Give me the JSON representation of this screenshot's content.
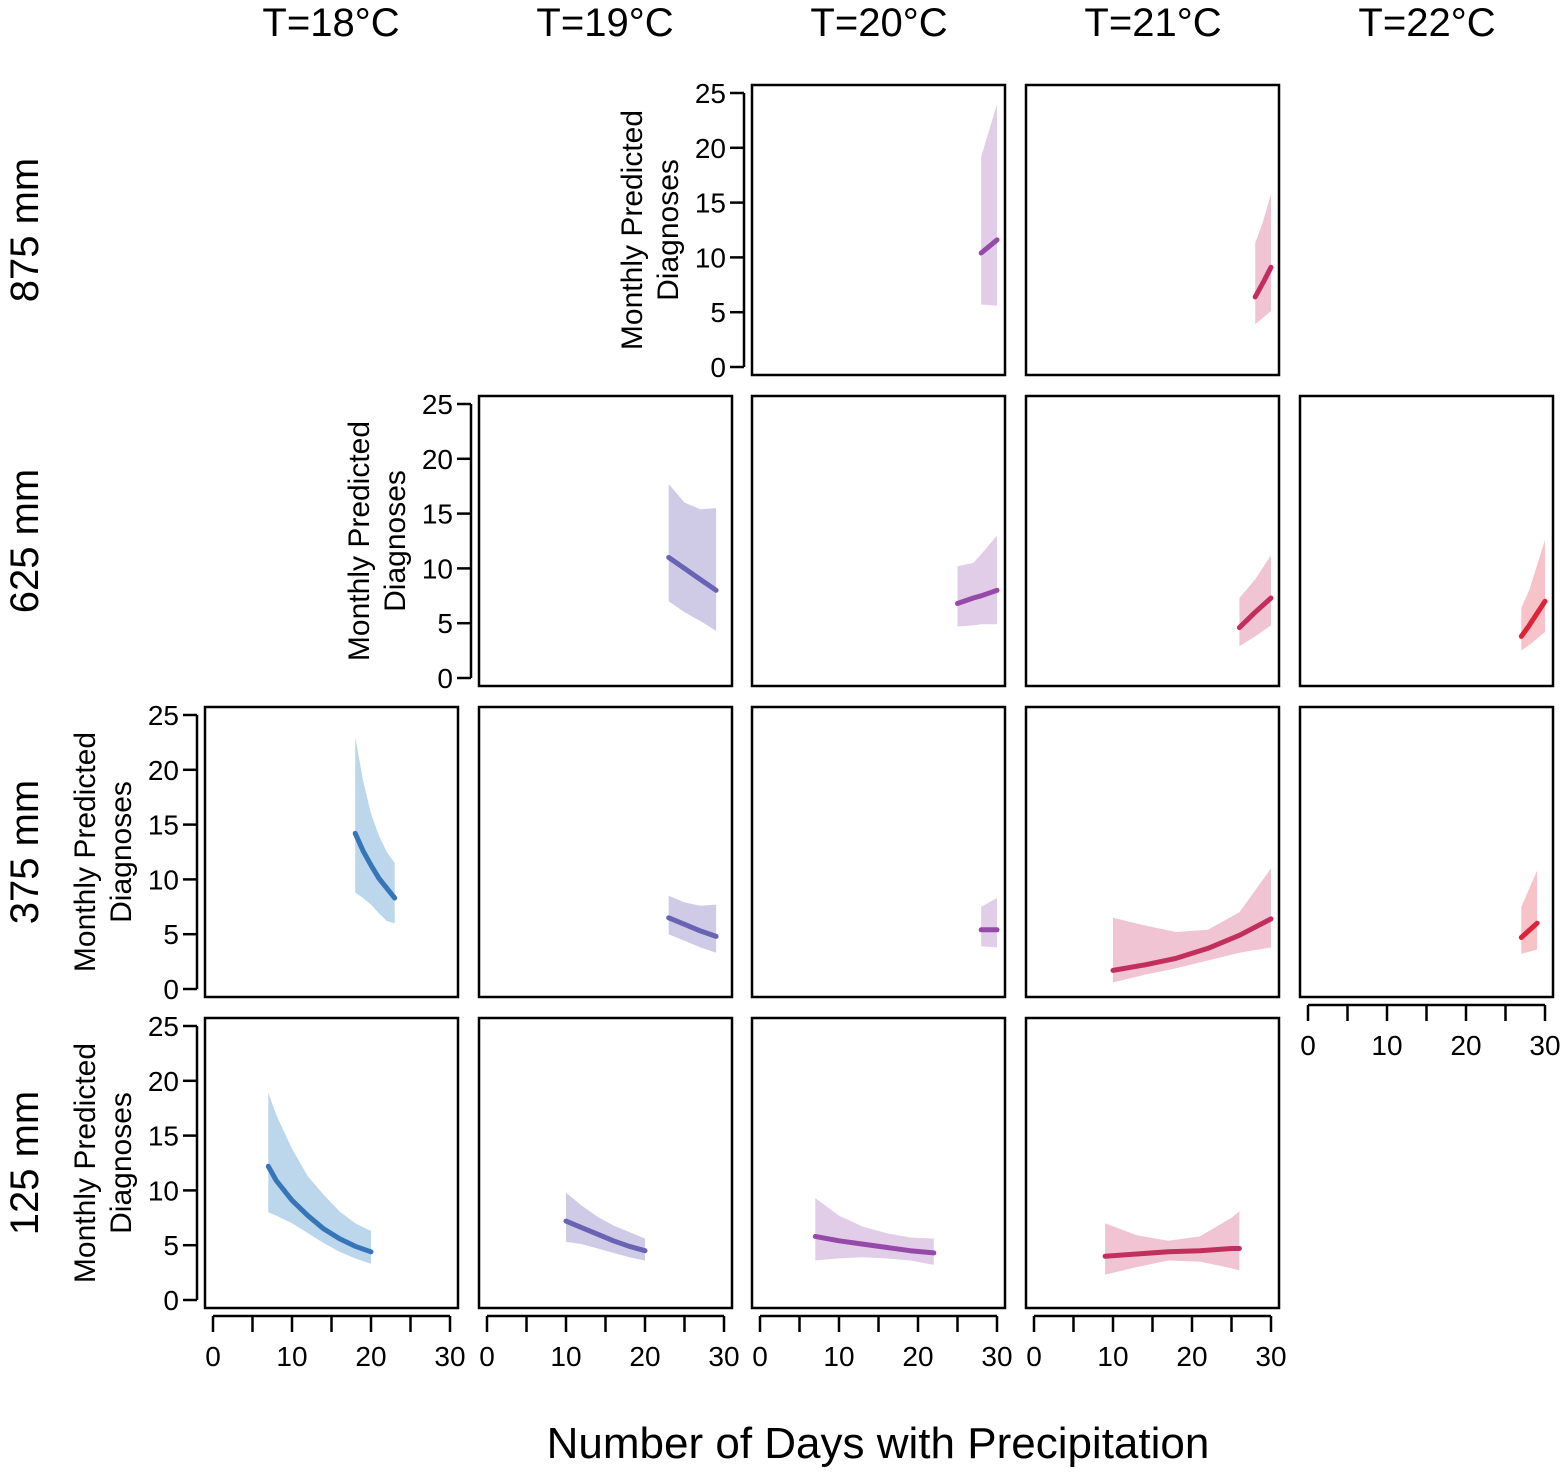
{
  "figure": {
    "xlabel": "Number of Days with Precipitation",
    "ylabel_lines": [
      "Monthly Predicted",
      "Diagnoses"
    ],
    "columns": [
      "T=18°C",
      "T=19°C",
      "T=20°C",
      "T=21°C",
      "T=22°C"
    ],
    "rows": [
      "875 mm",
      "625 mm",
      "375 mm",
      "125 mm"
    ],
    "x_ticks": [
      0,
      10,
      20,
      30
    ],
    "y_ticks": [
      0,
      5,
      10,
      15,
      20,
      25
    ]
  },
  "colors": {
    "T=18°C": {
      "line": "#3676b8",
      "band": "#bcd6ec"
    },
    "T=19°C": {
      "line": "#6a63b3",
      "band": "#cfcbe6"
    },
    "T=20°C": {
      "line": "#9549a8",
      "band": "#e2cde8"
    },
    "T=21°C": {
      "line": "#c22f5e",
      "band": "#f1c4d3"
    },
    "T=22°C": {
      "line": "#de2237",
      "band": "#f8c3c8"
    }
  },
  "chart_data": [
    {
      "type": "line",
      "column": "T=20°C",
      "row": "875 mm",
      "xlim": [
        0,
        30
      ],
      "ylim": [
        0,
        25
      ],
      "x": [
        28,
        30
      ],
      "y": [
        10.4,
        11.6
      ],
      "lower": [
        5.7,
        5.6
      ],
      "upper": [
        19.2,
        24.0
      ]
    },
    {
      "type": "line",
      "column": "T=21°C",
      "row": "875 mm",
      "xlim": [
        0,
        30
      ],
      "ylim": [
        0,
        25
      ],
      "x": [
        28,
        29,
        30
      ],
      "y": [
        6.4,
        7.7,
        9.1
      ],
      "lower": [
        3.9,
        4.5,
        5.1
      ],
      "upper": [
        11.3,
        13.3,
        15.8
      ]
    },
    {
      "type": "line",
      "column": "T=19°C",
      "row": "625 mm",
      "xlim": [
        0,
        30
      ],
      "ylim": [
        0,
        25
      ],
      "x": [
        23,
        25,
        27,
        29
      ],
      "y": [
        11.0,
        10.0,
        9.0,
        8.0
      ],
      "lower": [
        7.0,
        6.0,
        5.2,
        4.3
      ],
      "upper": [
        17.7,
        16.0,
        15.4,
        15.5
      ]
    },
    {
      "type": "line",
      "column": "T=20°C",
      "row": "625 mm",
      "xlim": [
        0,
        30
      ],
      "ylim": [
        0,
        25
      ],
      "x": [
        25,
        27,
        28,
        30
      ],
      "y": [
        6.8,
        7.3,
        7.5,
        8.0
      ],
      "lower": [
        4.7,
        4.8,
        4.9,
        4.9
      ],
      "upper": [
        10.2,
        10.5,
        11.3,
        13.0
      ]
    },
    {
      "type": "line",
      "column": "T=21°C",
      "row": "625 mm",
      "xlim": [
        0,
        30
      ],
      "ylim": [
        0,
        25
      ],
      "x": [
        26,
        28,
        30
      ],
      "y": [
        4.6,
        6.0,
        7.3
      ],
      "lower": [
        2.9,
        3.8,
        4.8
      ],
      "upper": [
        7.3,
        9.0,
        11.2
      ]
    },
    {
      "type": "line",
      "column": "T=22°C",
      "row": "625 mm",
      "xlim": [
        0,
        30
      ],
      "ylim": [
        0,
        25
      ],
      "x": [
        27,
        28,
        30
      ],
      "y": [
        3.8,
        4.8,
        7.0
      ],
      "lower": [
        2.5,
        3.0,
        4.2
      ],
      "upper": [
        6.4,
        8.0,
        12.6
      ]
    },
    {
      "type": "line",
      "column": "T=18°C",
      "row": "375 mm",
      "xlim": [
        0,
        30
      ],
      "ylim": [
        0,
        25
      ],
      "x": [
        18,
        19,
        20,
        21,
        22,
        23
      ],
      "y": [
        14.2,
        12.6,
        11.3,
        10.1,
        9.2,
        8.3
      ],
      "lower": [
        8.8,
        8.3,
        7.7,
        6.9,
        6.2,
        6.0
      ],
      "upper": [
        23.0,
        19.0,
        16.0,
        14.0,
        12.5,
        11.5
      ]
    },
    {
      "type": "line",
      "column": "T=19°C",
      "row": "375 mm",
      "xlim": [
        0,
        30
      ],
      "ylim": [
        0,
        25
      ],
      "x": [
        23,
        25,
        27,
        29
      ],
      "y": [
        6.5,
        5.9,
        5.3,
        4.8
      ],
      "lower": [
        5.0,
        4.4,
        3.8,
        3.3
      ],
      "upper": [
        8.5,
        7.9,
        7.6,
        7.7
      ]
    },
    {
      "type": "line",
      "column": "T=20°C",
      "row": "375 mm",
      "xlim": [
        0,
        30
      ],
      "ylim": [
        0,
        25
      ],
      "x": [
        28,
        30
      ],
      "y": [
        5.4,
        5.4
      ],
      "lower": [
        3.9,
        3.8
      ],
      "upper": [
        7.5,
        8.3
      ]
    },
    {
      "type": "line",
      "column": "T=21°C",
      "row": "375 mm",
      "xlim": [
        0,
        30
      ],
      "ylim": [
        0,
        25
      ],
      "x": [
        10,
        14,
        18,
        22,
        26,
        30
      ],
      "y": [
        1.7,
        2.2,
        2.8,
        3.7,
        4.9,
        6.4
      ],
      "lower": [
        0.6,
        1.3,
        1.9,
        2.6,
        3.3,
        3.8
      ],
      "upper": [
        6.5,
        5.8,
        5.2,
        5.4,
        7.0,
        11.0
      ]
    },
    {
      "type": "line",
      "column": "T=22°C",
      "row": "375 mm",
      "xlim": [
        0,
        30
      ],
      "ylim": [
        0,
        25
      ],
      "x": [
        27,
        29
      ],
      "y": [
        4.7,
        6.0
      ],
      "lower": [
        3.2,
        3.6
      ],
      "upper": [
        7.5,
        10.8
      ]
    },
    {
      "type": "line",
      "column": "T=18°C",
      "row": "125 mm",
      "xlim": [
        0,
        30
      ],
      "ylim": [
        0,
        25
      ],
      "x": [
        7,
        8,
        10,
        12,
        14,
        16,
        18,
        20
      ],
      "y": [
        12.2,
        10.9,
        9.1,
        7.7,
        6.5,
        5.6,
        4.9,
        4.4
      ],
      "lower": [
        8.0,
        7.7,
        7.0,
        6.1,
        5.2,
        4.4,
        3.8,
        3.3
      ],
      "upper": [
        18.9,
        16.9,
        13.8,
        11.3,
        9.6,
        8.1,
        7.0,
        6.3
      ]
    },
    {
      "type": "line",
      "column": "T=19°C",
      "row": "125 mm",
      "xlim": [
        0,
        30
      ],
      "ylim": [
        0,
        25
      ],
      "x": [
        10,
        12,
        14,
        16,
        18,
        20
      ],
      "y": [
        7.2,
        6.6,
        6.0,
        5.4,
        4.9,
        4.5
      ],
      "lower": [
        5.3,
        5.1,
        4.7,
        4.3,
        3.9,
        3.6
      ],
      "upper": [
        9.8,
        8.6,
        7.6,
        6.8,
        6.2,
        5.6
      ]
    },
    {
      "type": "line",
      "column": "T=20°C",
      "row": "125 mm",
      "xlim": [
        0,
        30
      ],
      "ylim": [
        0,
        25
      ],
      "x": [
        7,
        10,
        13,
        16,
        19,
        22
      ],
      "y": [
        5.8,
        5.4,
        5.1,
        4.8,
        4.5,
        4.3
      ],
      "lower": [
        3.6,
        3.8,
        3.9,
        3.8,
        3.6,
        3.2
      ],
      "upper": [
        9.3,
        7.7,
        6.7,
        6.1,
        5.7,
        5.6
      ]
    },
    {
      "type": "line",
      "column": "T=21°C",
      "row": "125 mm",
      "xlim": [
        0,
        30
      ],
      "ylim": [
        0,
        25
      ],
      "x": [
        9,
        13,
        17,
        21,
        25,
        26
      ],
      "y": [
        4.0,
        4.2,
        4.4,
        4.5,
        4.7,
        4.7
      ],
      "lower": [
        2.3,
        3.0,
        3.6,
        3.5,
        2.9,
        2.7
      ],
      "upper": [
        7.0,
        5.9,
        5.4,
        5.8,
        7.5,
        8.1
      ]
    }
  ]
}
